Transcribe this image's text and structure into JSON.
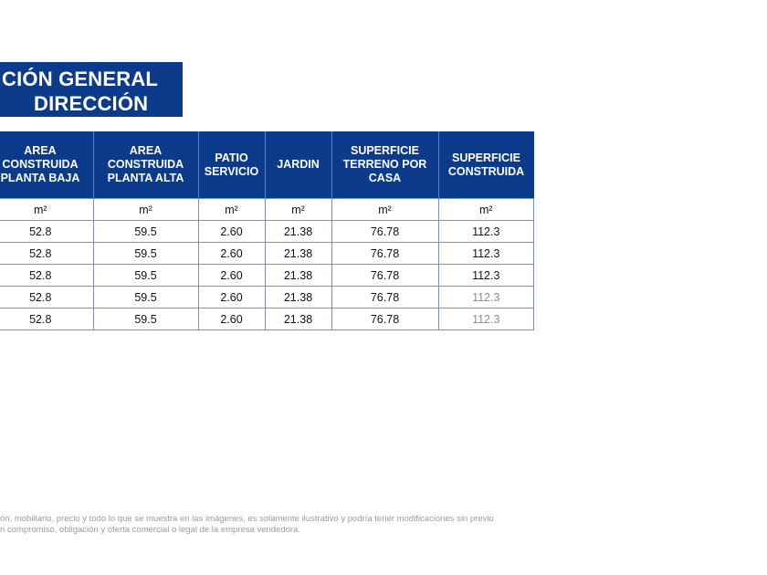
{
  "title": {
    "line1": "CIÓN GENERAL",
    "line2": "DIRECCIÓN"
  },
  "table": {
    "headers": [
      {
        "line1": "AREA",
        "line2": "CONSTRUIDA",
        "line3": "PLANTA BAJA"
      },
      {
        "line1": "AREA",
        "line2": "CONSTRUIDA",
        "line3": "PLANTA ALTA"
      },
      {
        "line1": "PATIO",
        "line2": "SERVICIO",
        "line3": ""
      },
      {
        "line1": "JARDIN",
        "line2": "",
        "line3": ""
      },
      {
        "line1": "SUPERFICIE",
        "line2": "TERRENO POR",
        "line3": "CASA"
      },
      {
        "line1": "SUPERFICIE",
        "line2": "CONSTRUIDA",
        "line3": ""
      }
    ],
    "units": [
      "m²",
      "m²",
      "m²",
      "m²",
      "m²",
      "m²"
    ],
    "rows": [
      [
        "52.8",
        "59.5",
        "2.60",
        "21.38",
        "76.78",
        "112.3"
      ],
      [
        "52.8",
        "59.5",
        "2.60",
        "21.38",
        "76.78",
        "112.3"
      ],
      [
        "52.8",
        "59.5",
        "2.60",
        "21.38",
        "76.78",
        "112.3"
      ],
      [
        "52.8",
        "59.5",
        "2.60",
        "21.38",
        "76.78",
        "112.3"
      ],
      [
        "52.8",
        "59.5",
        "2.60",
        "21.38",
        "76.78",
        "112.3"
      ]
    ]
  },
  "disclaimer": {
    "line1": "ón, mobiliario, precio y todo lo que se muestra en las imágenes, es solamente ilustrativo y podría tener modificaciones sin previo",
    "line2": "n compromiso, obligación y oferta comercial o legal de la empresa vendedora."
  },
  "colors": {
    "header_blue": "#0d3b8c",
    "border_blue": "#6f93cf"
  }
}
